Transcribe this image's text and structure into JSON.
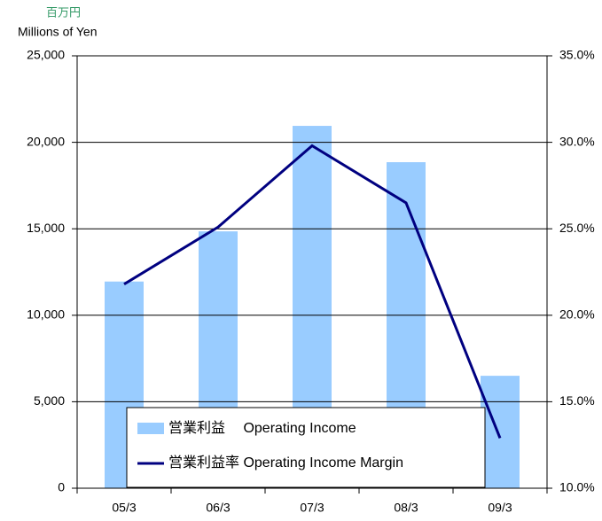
{
  "chart_data": {
    "type": "bar-line",
    "unit_label_jp": "百万円",
    "unit_label": "Millions of Yen",
    "categories": [
      "05/3",
      "06/3",
      "07/3",
      "08/3",
      "09/3"
    ],
    "series": [
      {
        "name": "営業利益　 Operating Income",
        "color": "#99ccff",
        "type": "bar",
        "values": [
          11950,
          14850,
          20950,
          18850,
          6500
        ]
      },
      {
        "name": "営業利益率 Operating Income Margin",
        "color": "#000080",
        "type": "line",
        "axis": "y2",
        "values": [
          21.8,
          25.1,
          29.8,
          26.5,
          12.9
        ]
      }
    ],
    "ylim": [
      0,
      25000
    ],
    "yticks": [
      0,
      {
        "value": 5000,
        "label": "5,000"
      },
      {
        "value": 10000,
        "label": "10,000"
      },
      {
        "value": 15000,
        "label": "15,000"
      },
      {
        "value": 20000,
        "label": "20,000"
      },
      {
        "value": 25000,
        "label": "25,000"
      }
    ],
    "y2lim": [
      10,
      35
    ],
    "y2ticks": [
      {
        "value": 10,
        "label": "10.0%"
      },
      {
        "value": 15,
        "label": "15.0%"
      },
      {
        "value": 20,
        "label": "20.0%"
      },
      {
        "value": 25,
        "label": "25.0%"
      },
      {
        "value": 30,
        "label": "30.0%"
      },
      {
        "value": 35,
        "label": "35.0%"
      }
    ],
    "grid": true
  }
}
